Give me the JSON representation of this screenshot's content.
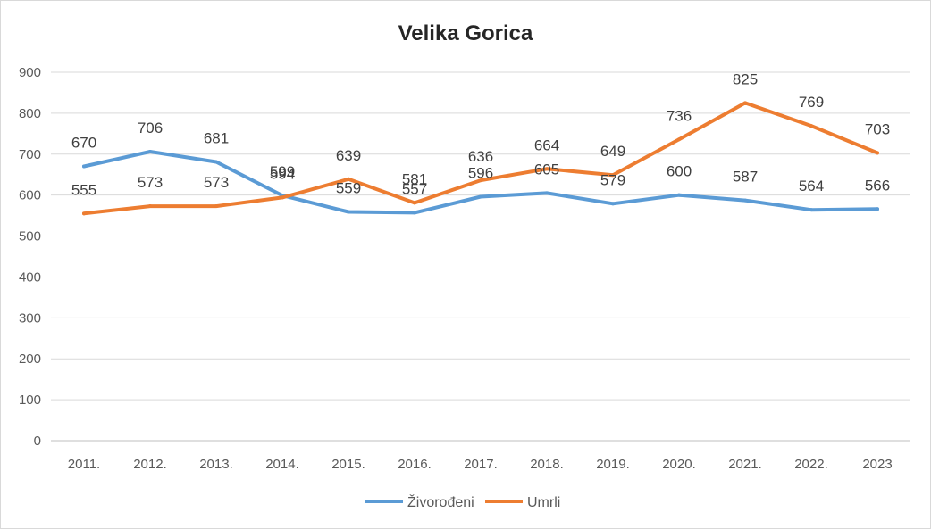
{
  "chart_data": {
    "type": "line",
    "title": "Velika Gorica",
    "xlabel": "",
    "ylabel": "",
    "categories": [
      "2011.",
      "2012.",
      "2013.",
      "2014.",
      "2015.",
      "2016.",
      "2017.",
      "2018.",
      "2019.",
      "2020.",
      "2021.",
      "2022.",
      "2023"
    ],
    "yticks": [
      "0",
      "100",
      "200",
      "300",
      "400",
      "500",
      "600",
      "700",
      "800",
      "900"
    ],
    "ylim": [
      0,
      900
    ],
    "grid": true,
    "legend_position": "bottom",
    "data_labels": true,
    "series": [
      {
        "name": "Živorođeni",
        "color": "#5b9bd5",
        "values": [
          670,
          706,
          681,
          599,
          559,
          557,
          596,
          605,
          579,
          600,
          587,
          564,
          566
        ]
      },
      {
        "name": "Umrli",
        "color": "#ed7d31",
        "values": [
          555,
          573,
          573,
          594,
          639,
          581,
          636,
          664,
          649,
          736,
          825,
          769,
          703
        ]
      }
    ]
  }
}
